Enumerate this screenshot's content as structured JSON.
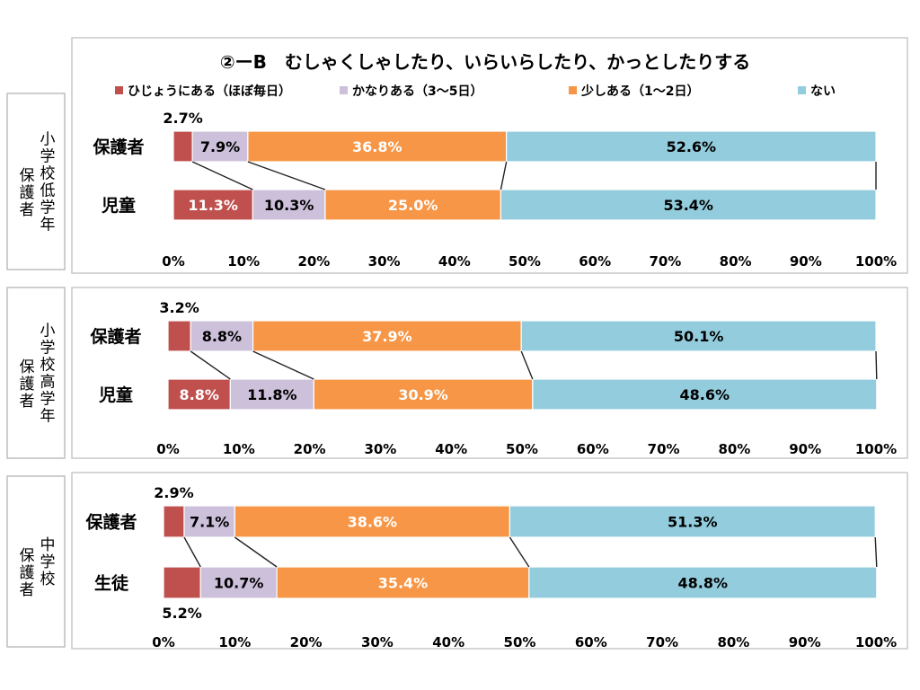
{
  "chart_data": {
    "type": "bar",
    "orientation": "horizontal-stacked-100",
    "title": "②ーB　むしゃくしゃしたり、いらいらしたり、かっとしたりする",
    "legend": {
      "placement": "top",
      "entries": [
        {
          "name": "ひじょうにある（ほぼ毎日）",
          "color": "#c0504d"
        },
        {
          "name": "かなりある（3～5日）",
          "color": "#ccc0da"
        },
        {
          "name": "少しある（1～2日）",
          "color": "#f79646"
        },
        {
          "name": "ない",
          "color": "#93cddd"
        }
      ]
    },
    "x_ticks": [
      "0%",
      "10%",
      "20%",
      "30%",
      "40%",
      "50%",
      "60%",
      "70%",
      "80%",
      "90%",
      "100%"
    ],
    "xlim": [
      0,
      100
    ],
    "panels": [
      {
        "group_label": "保護者",
        "group_sublabel": "小学校低学年",
        "categories": [
          "保護者",
          "児童"
        ],
        "rows": [
          {
            "values": [
              2.7,
              7.9,
              36.8,
              52.6
            ],
            "labels": [
              "2.7%",
              "7.9%",
              "36.8%",
              "52.6%"
            ]
          },
          {
            "values": [
              11.3,
              10.3,
              25.0,
              53.4
            ],
            "labels": [
              "11.3%",
              "10.3%",
              "25.0%",
              "53.4%"
            ]
          }
        ]
      },
      {
        "group_label": "保護者",
        "group_sublabel": "小学校高学年",
        "categories": [
          "保護者",
          "児童"
        ],
        "rows": [
          {
            "values": [
              3.2,
              8.8,
              37.9,
              50.1
            ],
            "labels": [
              "3.2%",
              "8.8%",
              "37.9%",
              "50.1%"
            ]
          },
          {
            "values": [
              8.8,
              11.8,
              30.9,
              48.6
            ],
            "labels": [
              "8.8%",
              "11.8%",
              "30.9%",
              "48.6%"
            ]
          }
        ]
      },
      {
        "group_label": "保護者",
        "group_sublabel": "中学校",
        "categories": [
          "保護者",
          "生徒"
        ],
        "rows": [
          {
            "values": [
              2.9,
              7.1,
              38.6,
              51.3
            ],
            "labels": [
              "2.9%",
              "7.1%",
              "38.6%",
              "51.3%"
            ]
          },
          {
            "values": [
              5.2,
              10.7,
              35.4,
              48.8
            ],
            "labels": [
              "5.2%",
              "10.7%",
              "35.4%",
              "48.8%"
            ]
          }
        ]
      }
    ]
  }
}
